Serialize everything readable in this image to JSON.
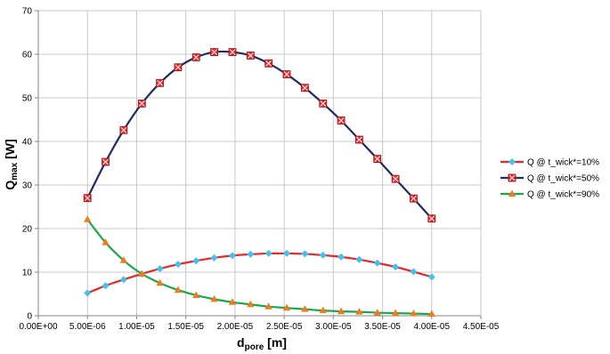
{
  "chart_data": {
    "type": "line",
    "xlabel": {
      "main": "d",
      "sub": "pore",
      "unit": " [m]"
    },
    "ylabel": {
      "main": "Q",
      "sub": "max",
      "unit": " [W]"
    },
    "xlim": [
      0,
      4.5e-05
    ],
    "ylim": [
      0,
      70
    ],
    "xticks": [
      "0.00E+00",
      "5.00E-06",
      "1.00E-05",
      "1.50E-05",
      "2.00E-05",
      "2.50E-05",
      "3.00E-05",
      "3.50E-05",
      "4.00E-05",
      "4.50E-05"
    ],
    "yticks": [
      "0",
      "10",
      "20",
      "30",
      "40",
      "50",
      "60",
      "70"
    ],
    "grid": {
      "x": true,
      "y": true
    },
    "legend_position": "right",
    "x": [
      5e-06,
      6.84e-06,
      8.68e-06,
      1.053e-05,
      1.237e-05,
      1.421e-05,
      1.605e-05,
      1.789e-05,
      1.974e-05,
      2.158e-05,
      2.342e-05,
      2.526e-05,
      2.711e-05,
      2.895e-05,
      3.079e-05,
      3.263e-05,
      3.447e-05,
      3.632e-05,
      3.816e-05,
      4e-05
    ],
    "series": [
      {
        "name": "Q @ t_wick*=10%",
        "line_color": "#e8272a",
        "marker_color": "#3ec3ec",
        "marker": "diamond",
        "values": [
          5.2,
          6.9,
          8.3,
          9.6,
          10.8,
          11.8,
          12.6,
          13.3,
          13.8,
          14.1,
          14.3,
          14.3,
          14.2,
          13.9,
          13.5,
          12.9,
          12.1,
          11.2,
          10.1,
          8.9
        ]
      },
      {
        "name": "Q @ t_wick*=50%",
        "line_color": "#1f2d5c",
        "marker_color": "#e8272a",
        "marker": "square",
        "values": [
          27.0,
          35.3,
          42.6,
          48.7,
          53.4,
          57.0,
          59.3,
          60.5,
          60.5,
          59.7,
          57.9,
          55.4,
          52.3,
          48.7,
          44.8,
          40.4,
          36.0,
          31.4,
          26.9,
          22.3
        ]
      },
      {
        "name": "Q @ t_wick*=90%",
        "line_color": "#1aa84c",
        "marker_color": "#f07a1c",
        "marker": "triangle",
        "values": [
          22.1,
          16.8,
          12.7,
          9.6,
          7.5,
          5.9,
          4.7,
          3.8,
          3.1,
          2.6,
          2.1,
          1.8,
          1.5,
          1.2,
          1.0,
          0.9,
          0.7,
          0.6,
          0.5,
          0.4
        ]
      }
    ]
  }
}
